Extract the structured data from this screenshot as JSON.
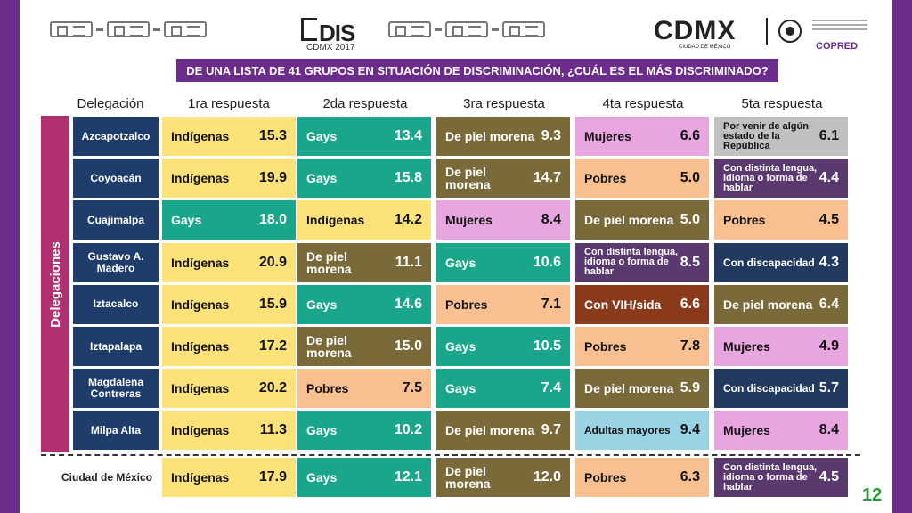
{
  "header": {
    "dis_logo": "DIS",
    "dis_sub": "CDMX 2017",
    "cdmx": "CDMX",
    "cdmx_sub": "CIUDAD DE MÉXICO",
    "copred": "COPRED"
  },
  "question": "DE UNA LISTA DE 41 GRUPOS EN SITUACIÓN DE DISCRIMINACIÓN, ¿CUÁL ES EL MÁS DISCRIMINADO?",
  "columns": [
    "Delegación",
    "1ra respuesta",
    "2da respuesta",
    "3ra respuesta",
    "4ta respuesta",
    "5ta respuesta"
  ],
  "side_label": "Delegaciones",
  "colors": {
    "Indígenas": "#fde27a",
    "Gays": "#1aa68a",
    "De piel morena": "#7a6a3a",
    "Mujeres": "#e8a6e0",
    "Pobres": "#f8c090",
    "Con distinta lengua, idioma o forma de hablar": "#5a3a6e",
    "Con discapacidad": "#223a60",
    "Con VIH/sida": "#8a3a1a",
    "Adultas mayores": "#9ad4e4",
    "Por venir de algún estado de la República": "#c0c0c0"
  },
  "rows": [
    {
      "name": "Azcapotzalco",
      "cells": [
        [
          "Indígenas",
          "15.3"
        ],
        [
          "Gays",
          "13.4"
        ],
        [
          "De piel morena",
          "9.3"
        ],
        [
          "Mujeres",
          "6.6"
        ],
        [
          "Por venir de algún estado de la República",
          "6.1"
        ]
      ]
    },
    {
      "name": "Coyoacán",
      "cells": [
        [
          "Indígenas",
          "19.9"
        ],
        [
          "Gays",
          "15.8"
        ],
        [
          "De piel morena",
          "14.7"
        ],
        [
          "Pobres",
          "5.0"
        ],
        [
          "Con distinta lengua, idioma o forma de hablar",
          "4.4"
        ]
      ]
    },
    {
      "name": "Cuajimalpa",
      "cells": [
        [
          "Gays",
          "18.0"
        ],
        [
          "Indígenas",
          "14.2"
        ],
        [
          "Mujeres",
          "8.4"
        ],
        [
          "De piel morena",
          "5.0"
        ],
        [
          "Pobres",
          "4.5"
        ]
      ]
    },
    {
      "name": "Gustavo A. Madero",
      "cells": [
        [
          "Indígenas",
          "20.9"
        ],
        [
          "De piel morena",
          "11.1"
        ],
        [
          "Gays",
          "10.6"
        ],
        [
          "Con distinta lengua, idioma o forma de hablar",
          "8.5"
        ],
        [
          "Con discapacidad",
          "4.3"
        ]
      ]
    },
    {
      "name": "Iztacalco",
      "cells": [
        [
          "Indígenas",
          "15.9"
        ],
        [
          "Gays",
          "14.6"
        ],
        [
          "Pobres",
          "7.1"
        ],
        [
          "Con VIH/sida",
          "6.6"
        ],
        [
          "De piel morena",
          "6.4"
        ]
      ]
    },
    {
      "name": "Iztapalapa",
      "cells": [
        [
          "Indígenas",
          "17.2"
        ],
        [
          "De piel morena",
          "15.0"
        ],
        [
          "Gays",
          "10.5"
        ],
        [
          "Pobres",
          "7.8"
        ],
        [
          "Mujeres",
          "4.9"
        ]
      ]
    },
    {
      "name": "Magdalena Contreras",
      "cells": [
        [
          "Indígenas",
          "20.2"
        ],
        [
          "Pobres",
          "7.5"
        ],
        [
          "Gays",
          "7.4"
        ],
        [
          "De piel morena",
          "5.9"
        ],
        [
          "Con discapacidad",
          "5.7"
        ]
      ]
    },
    {
      "name": "Milpa Alta",
      "cells": [
        [
          "Indígenas",
          "11.3"
        ],
        [
          "Gays",
          "10.2"
        ],
        [
          "De piel morena",
          "9.7"
        ],
        [
          "Adultas mayores",
          "9.4"
        ],
        [
          "Mujeres",
          "8.4"
        ]
      ]
    }
  ],
  "total": {
    "name": "Ciudad de México",
    "cells": [
      [
        "Indígenas",
        "17.9"
      ],
      [
        "Gays",
        "12.1"
      ],
      [
        "De piel morena",
        "12.0"
      ],
      [
        "Pobres",
        "6.3"
      ],
      [
        "Con distinta lengua, idioma o forma de hablar",
        "4.5"
      ]
    ]
  },
  "page_number": "12"
}
